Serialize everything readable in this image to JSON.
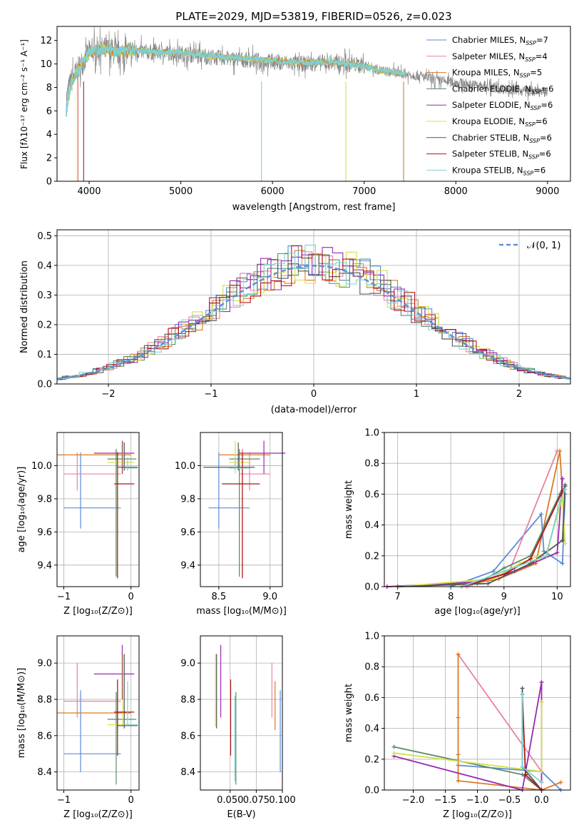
{
  "colors": {
    "s0": "#5b8bd8",
    "s1": "#e8829f",
    "s2": "#d97a26",
    "s3": "#5a8a66",
    "s4": "#9b27b0",
    "s5": "#d4e042",
    "s6": "#555555",
    "s7": "#b01515",
    "s8": "#7fd0d2",
    "dashed": "#6090dd",
    "grid": "#b0b0b0"
  },
  "chart_data": [
    {
      "id": "spectrum",
      "type": "line",
      "title": "PLATE=2029, MJD=53819, FIBERID=0526, z=0.023",
      "xlabel": "wavelength [Angstrom, rest frame]",
      "ylabel": "Flux [fλ10⁻¹⁷ erg cm⁻² s⁻¹ A⁻¹]",
      "xlim": [
        3650,
        9250
      ],
      "ylim": [
        0,
        13.2
      ],
      "xticks": [
        "4000",
        "5000",
        "6000",
        "7000",
        "8000",
        "9000"
      ],
      "yticks": [
        "0",
        "2",
        "4",
        "6",
        "8",
        "10",
        "12"
      ],
      "grid": false,
      "legend_position": "top-right",
      "observed_series": {
        "name": "",
        "x": [
          3750,
          3800,
          3900,
          4000,
          4100,
          4200,
          4300,
          4500,
          4700,
          5000,
          5300,
          5600,
          6000,
          6300,
          6600,
          7000,
          7200,
          7400,
          7600,
          7800,
          8000,
          8200,
          8400,
          8600,
          8800,
          9000
        ],
        "y": [
          7.0,
          8.5,
          9.8,
          11.0,
          11.3,
          11.2,
          10.9,
          11.1,
          11.0,
          10.9,
          10.6,
          10.4,
          10.2,
          10.0,
          10.1,
          9.9,
          9.4,
          9.2,
          9.0,
          8.6,
          8.4,
          8.2,
          8.0,
          7.8,
          7.7,
          7.6
        ]
      },
      "model_series": {
        "x": [
          3750,
          3800,
          3900,
          4000,
          4100,
          4200,
          4300,
          4500,
          4700,
          5000,
          5300,
          5600,
          6000,
          6300,
          6600,
          7000,
          7200,
          7400,
          7450
        ],
        "y": [
          6.0,
          8.3,
          9.8,
          11.0,
          11.2,
          11.3,
          11.0,
          11.2,
          11.0,
          11.0,
          10.7,
          10.5,
          10.3,
          10.1,
          10.2,
          9.8,
          9.4,
          9.2,
          9.1
        ]
      },
      "legend": [
        {
          "prefix": "Chabrier MILES, N",
          "sub": "SSP",
          "suffix": "=7",
          "color": "s0"
        },
        {
          "prefix": "Salpeter MILES, N",
          "sub": "SSP",
          "suffix": "=4",
          "color": "s1"
        },
        {
          "prefix": "Kroupa MILES, N",
          "sub": "SSP",
          "suffix": "=5",
          "color": "s2"
        },
        {
          "prefix": "Chabrier ELODIE, N",
          "sub": "SSP",
          "suffix": "=6",
          "color": "s3"
        },
        {
          "prefix": "Salpeter ELODIE, N",
          "sub": "SSP",
          "suffix": "=6",
          "color": "s4"
        },
        {
          "prefix": "Kroupa ELODIE, N",
          "sub": "SSP",
          "suffix": "=6",
          "color": "s5"
        },
        {
          "prefix": "Chabrier STELIB, N",
          "sub": "SSP",
          "suffix": "=6",
          "color": "s6"
        },
        {
          "prefix": "Salpeter STELIB, N",
          "sub": "SSP",
          "suffix": "=6",
          "color": "s7"
        },
        {
          "prefix": "Kroupa STELIB, N",
          "sub": "SSP",
          "suffix": "=6",
          "color": "s8"
        }
      ]
    },
    {
      "id": "residuals",
      "type": "histogram",
      "xlabel": "(data-model)/error",
      "ylabel": "Normed distribution",
      "xlim": [
        -2.5,
        2.5
      ],
      "ylim": [
        0,
        0.52
      ],
      "xticks": [
        "−2",
        "−1",
        "0",
        "1",
        "2"
      ],
      "yticks": [
        "0.0",
        "0.1",
        "0.2",
        "0.3",
        "0.4",
        "0.5"
      ],
      "grid": true,
      "legend": {
        "label": "𝒩(0, 1)",
        "position": "top-right"
      },
      "bin_width": 0.1,
      "reference_curve": "normal(0,1)"
    },
    {
      "id": "age-vs-Z",
      "type": "errorbar",
      "xlabel": "Z [log₁₀(Z/Z⊙)]",
      "ylabel": "age  [log₁₀(age/yr)]",
      "xlim": [
        -1.1,
        0.12
      ],
      "ylim": [
        9.27,
        10.2
      ],
      "xticks": [
        "−1",
        "0"
      ],
      "yticks": [
        "9.4",
        "9.6",
        "9.8",
        "10.0"
      ],
      "grid": true,
      "points": [
        {
          "s": "s0",
          "x": -0.75,
          "y": 9.745,
          "xl": -1.0,
          "xh": -0.15,
          "yl": 9.62,
          "yh": 10.08
        },
        {
          "s": "s1",
          "x": -0.8,
          "y": 9.95,
          "xl": -1.0,
          "xh": -0.15,
          "yl": 9.85,
          "yh": 10.08
        },
        {
          "s": "s2",
          "x": -0.22,
          "y": 10.065,
          "xl": -1.1,
          "xh": 0.0,
          "yl": 9.34,
          "yh": 10.1
        },
        {
          "s": "s3",
          "x": -0.22,
          "y": 10.04,
          "xl": -0.35,
          "xh": 0.08,
          "yl": 9.33,
          "yh": 10.1
        },
        {
          "s": "s4",
          "x": -0.13,
          "y": 10.075,
          "xl": -0.55,
          "xh": 0.05,
          "yl": 9.95,
          "yh": 10.15
        },
        {
          "s": "s5",
          "x": -0.12,
          "y": 10.02,
          "xl": -0.35,
          "xh": 0.05,
          "yl": 9.95,
          "yh": 10.15
        },
        {
          "s": "s6",
          "x": -0.1,
          "y": 9.99,
          "xl": -0.2,
          "xh": 0.1,
          "yl": 9.97,
          "yh": 10.14
        },
        {
          "s": "s7",
          "x": -0.2,
          "y": 9.89,
          "xl": -0.25,
          "xh": 0.05,
          "yl": 9.32,
          "yh": 10.08
        },
        {
          "s": "s8",
          "x": -0.05,
          "y": 9.985,
          "xl": -0.1,
          "xh": 0.1,
          "yl": 9.97,
          "yh": 10.05
        }
      ]
    },
    {
      "id": "age-vs-mass",
      "type": "errorbar",
      "xlabel": "mass [log₁₀(M/M⊙)]",
      "ylabel": "",
      "xlim": [
        8.32,
        9.12
      ],
      "ylim": [
        9.27,
        10.2
      ],
      "xticks": [
        "8.5",
        "9.0"
      ],
      "yticks": [
        "9.4",
        "9.6",
        "9.8",
        "10.0"
      ],
      "grid": true,
      "points": [
        {
          "s": "s0",
          "x": 8.5,
          "y": 9.745,
          "xl": 8.4,
          "xh": 8.8,
          "yl": 9.62,
          "yh": 10.08
        },
        {
          "s": "s1",
          "x": 8.8,
          "y": 9.95,
          "xl": 8.7,
          "xh": 9.0,
          "yl": 9.85,
          "yh": 10.08
        },
        {
          "s": "s2",
          "x": 8.73,
          "y": 10.065,
          "xl": 8.5,
          "xh": 9.0,
          "yl": 9.34,
          "yh": 10.1
        },
        {
          "s": "s3",
          "x": 8.7,
          "y": 10.04,
          "xl": 8.6,
          "xh": 8.9,
          "yl": 9.33,
          "yh": 10.1
        },
        {
          "s": "s4",
          "x": 8.94,
          "y": 10.075,
          "xl": 8.7,
          "xh": 9.15,
          "yl": 9.95,
          "yh": 10.15
        },
        {
          "s": "s5",
          "x": 8.66,
          "y": 10.02,
          "xl": 8.6,
          "xh": 8.8,
          "yl": 9.95,
          "yh": 10.15
        },
        {
          "s": "s6",
          "x": 8.69,
          "y": 9.99,
          "xl": 8.35,
          "xh": 8.85,
          "yl": 9.97,
          "yh": 10.14
        },
        {
          "s": "s7",
          "x": 8.73,
          "y": 9.89,
          "xl": 8.53,
          "xh": 8.9,
          "yl": 9.32,
          "yh": 10.08
        },
        {
          "s": "s8",
          "x": 8.66,
          "y": 9.985,
          "xl": 8.6,
          "xh": 8.8,
          "yl": 9.97,
          "yh": 10.05
        }
      ]
    },
    {
      "id": "weight-vs-age",
      "type": "line",
      "xlabel": "age  [log₁₀(age/yr)]",
      "ylabel": "mass weight",
      "xlim": [
        6.75,
        10.25
      ],
      "ylim": [
        0,
        1.0
      ],
      "xticks": [
        "7",
        "8",
        "9",
        "10"
      ],
      "yticks": [
        "0.0",
        "0.2",
        "0.4",
        "0.6",
        "0.8",
        "1.0"
      ],
      "grid": true,
      "series": [
        {
          "s": "s0",
          "x": [
            8.0,
            8.8,
            9.7,
            9.75,
            10.1,
            10.15
          ],
          "y": [
            0.0,
            0.1,
            0.47,
            0.23,
            0.15,
            0.6
          ]
        },
        {
          "s": "s1",
          "x": [
            8.3,
            9.1,
            10.0
          ],
          "y": [
            0.0,
            0.1,
            0.88
          ]
        },
        {
          "s": "s2",
          "x": [
            6.8,
            8.4,
            8.9,
            9.6,
            10.05,
            10.1
          ],
          "y": [
            0.0,
            0.02,
            0.05,
            0.15,
            0.88,
            0.6
          ]
        },
        {
          "s": "s3",
          "x": [
            7.0,
            8.5,
            9.0,
            9.5,
            10.05,
            10.15
          ],
          "y": [
            0.0,
            0.02,
            0.12,
            0.2,
            0.6,
            0.65
          ]
        },
        {
          "s": "s4",
          "x": [
            6.8,
            8.5,
            9.2,
            10.0,
            10.1
          ],
          "y": [
            0.0,
            0.03,
            0.1,
            0.22,
            0.7
          ]
        },
        {
          "s": "s5",
          "x": [
            7.0,
            8.8,
            9.3,
            9.8,
            10.1,
            10.15
          ],
          "y": [
            0.0,
            0.05,
            0.15,
            0.22,
            0.58,
            0.28
          ]
        },
        {
          "s": "s6",
          "x": [
            7.0,
            8.7,
            9.5,
            10.1,
            10.15
          ],
          "y": [
            0.0,
            0.02,
            0.15,
            0.3,
            0.66
          ]
        },
        {
          "s": "s7",
          "x": [
            8.2,
            9.0,
            9.5,
            10.1
          ],
          "y": [
            0.0,
            0.08,
            0.18,
            0.62
          ]
        },
        {
          "s": "s8",
          "x": [
            8.2,
            9.0,
            9.8,
            10.05,
            10.15
          ],
          "y": [
            0.0,
            0.1,
            0.2,
            0.55,
            0.63
          ]
        }
      ]
    },
    {
      "id": "mass-vs-Z",
      "type": "errorbar",
      "xlabel": "Z [log₁₀(Z/Z⊙)]",
      "ylabel": "mass [log₁₀(M/M⊙)]",
      "xlim": [
        -1.1,
        0.12
      ],
      "ylim": [
        8.3,
        9.15
      ],
      "xticks": [
        "−1",
        "0"
      ],
      "yticks": [
        "8.4",
        "8.6",
        "8.8",
        "9.0"
      ],
      "grid": true,
      "points": [
        {
          "s": "s0",
          "x": -0.75,
          "y": 8.5,
          "xl": -1.0,
          "xh": -0.15,
          "yl": 8.4,
          "yh": 8.85
        },
        {
          "s": "s1",
          "x": -0.8,
          "y": 8.79,
          "xl": -1.0,
          "xh": -0.15,
          "yl": 8.7,
          "yh": 9.0
        },
        {
          "s": "s2",
          "x": -0.2,
          "y": 8.725,
          "xl": -1.1,
          "xh": 0.0,
          "yl": 8.63,
          "yh": 8.9
        },
        {
          "s": "s3",
          "x": -0.22,
          "y": 8.69,
          "xl": -0.35,
          "xh": 0.08,
          "yl": 8.33,
          "yh": 8.84
        },
        {
          "s": "s4",
          "x": -0.13,
          "y": 8.94,
          "xl": -0.55,
          "xh": 0.05,
          "yl": 8.8,
          "yh": 9.1
        },
        {
          "s": "s5",
          "x": -0.12,
          "y": 8.66,
          "xl": -0.35,
          "xh": 0.05,
          "yl": 8.65,
          "yh": 9.05
        },
        {
          "s": "s6",
          "x": -0.1,
          "y": 8.655,
          "xl": -0.2,
          "xh": 0.1,
          "yl": 8.64,
          "yh": 9.05
        },
        {
          "s": "s7",
          "x": -0.2,
          "y": 8.73,
          "xl": -0.25,
          "xh": 0.05,
          "yl": 8.49,
          "yh": 8.91
        },
        {
          "s": "s8",
          "x": -0.05,
          "y": 8.66,
          "xl": -0.1,
          "xh": 0.1,
          "yl": 8.65,
          "yh": 8.9
        }
      ]
    },
    {
      "id": "mass-vs-ebv",
      "type": "errorbar",
      "xlabel": "E(B-V)",
      "ylabel": "",
      "xlim": [
        0.0215,
        0.1
      ],
      "ylim": [
        8.3,
        9.15
      ],
      "xticks": [
        "0.050",
        "0.075",
        "0.100"
      ],
      "yticks": [
        "8.4",
        "8.6",
        "8.8",
        "9.0"
      ],
      "grid": true,
      "points": [
        {
          "s": "s0",
          "x": 0.098,
          "y": 8.6,
          "yl": 8.4,
          "yh": 8.85
        },
        {
          "s": "s1",
          "x": 0.09,
          "y": 8.79,
          "yl": 8.7,
          "yh": 9.0
        },
        {
          "s": "s2",
          "x": 0.093,
          "y": 8.77,
          "yl": 8.63,
          "yh": 8.9
        },
        {
          "s": "s3",
          "x": 0.0555,
          "y": 8.6,
          "yl": 8.33,
          "yh": 8.84
        },
        {
          "s": "s4",
          "x": 0.041,
          "y": 8.94,
          "yl": 8.7,
          "yh": 9.1
        },
        {
          "s": "s5",
          "x": 0.036,
          "y": 8.85,
          "yl": 8.65,
          "yh": 9.05
        },
        {
          "s": "s6",
          "x": 0.037,
          "y": 8.9,
          "yl": 8.64,
          "yh": 9.05
        },
        {
          "s": "s7",
          "x": 0.0505,
          "y": 8.7,
          "yl": 8.49,
          "yh": 8.91
        },
        {
          "s": "s8",
          "x": 0.0545,
          "y": 8.66,
          "yl": 8.35,
          "yh": 8.82
        }
      ]
    },
    {
      "id": "weight-vs-Z",
      "type": "line",
      "xlabel": "Z [log₁₀(Z/Z⊙)]",
      "ylabel": "mass weight",
      "xlim": [
        -2.45,
        0.45
      ],
      "ylim": [
        0,
        1.0
      ],
      "xticks": [
        "−2.0",
        "−1.5",
        "−1.0",
        "−0.5",
        "0.0"
      ],
      "yticks": [
        "0.0",
        "0.2",
        "0.4",
        "0.6",
        "0.8",
        "1.0"
      ],
      "grid": true,
      "series": [
        {
          "s": "s0",
          "x": [
            -1.3,
            0.0,
            0.3
          ],
          "y": [
            0.16,
            0.12,
            0.0
          ]
        },
        {
          "s": "s1",
          "x": [
            -1.3,
            0.0
          ],
          "y": [
            0.88,
            0.12
          ]
        },
        {
          "s": "s2",
          "x": [
            -1.3,
            -1.3,
            -1.3,
            -1.3,
            0.0,
            0.3
          ],
          "y": [
            0.88,
            0.47,
            0.23,
            0.06,
            0.0,
            0.05
          ]
        },
        {
          "s": "s3",
          "x": [
            -2.3,
            -0.3,
            0.0
          ],
          "y": [
            0.28,
            0.1,
            0.0
          ]
        },
        {
          "s": "s4",
          "x": [
            -2.3,
            -0.3,
            0.0,
            0.0
          ],
          "y": [
            0.22,
            0.0,
            0.7,
            0.05
          ]
        },
        {
          "s": "s5",
          "x": [
            -2.3,
            0.0,
            0.0
          ],
          "y": [
            0.24,
            0.12,
            0.57
          ]
        },
        {
          "s": "s6",
          "x": [
            -0.3,
            -0.3,
            0.0
          ],
          "y": [
            0.66,
            0.15,
            0.0
          ]
        },
        {
          "s": "s7",
          "x": [
            -0.3,
            -0.25,
            0.0
          ],
          "y": [
            0.62,
            0.1,
            0.0
          ]
        },
        {
          "s": "s8",
          "x": [
            -0.3,
            -0.3,
            0.0
          ],
          "y": [
            0.62,
            0.15,
            0.05
          ]
        }
      ]
    }
  ]
}
